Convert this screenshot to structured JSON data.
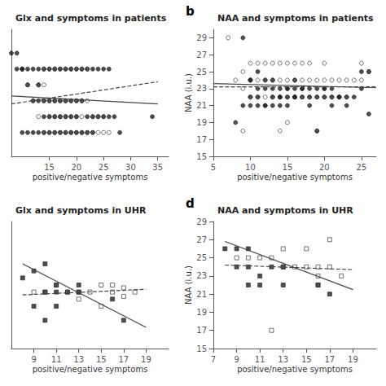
{
  "chart_data": [
    {
      "type": "scatter",
      "title": "Glx and symptoms in patients",
      "xlabel": "positive/negative symptoms",
      "xlim": [
        8,
        37
      ],
      "ylim": [
        6.5,
        14.5
      ],
      "xticks": [
        15,
        20,
        25,
        30,
        35
      ],
      "tick_labels": "x",
      "grid": false,
      "series": [
        {
          "type": "scatter",
          "marker": "open circle",
          "color": "#222222",
          "x": [
            10,
            11,
            12,
            13,
            13,
            14,
            14,
            15,
            15,
            16,
            16,
            17,
            17,
            18,
            18,
            19,
            19,
            20,
            20,
            21,
            21,
            22,
            23,
            24,
            25,
            14,
            15,
            16,
            17,
            18,
            19,
            20,
            21,
            22,
            14,
            15,
            16,
            17,
            18,
            19,
            20,
            21,
            22,
            23,
            24,
            25,
            26
          ],
          "values": [
            12,
            11,
            10,
            11,
            9,
            11,
            10,
            10,
            9,
            10,
            9,
            10,
            9,
            10,
            9,
            10,
            9,
            10,
            9,
            10,
            9,
            10,
            9,
            9,
            9,
            12,
            12,
            12,
            12,
            12,
            12,
            12,
            12,
            12,
            8,
            8,
            8,
            8,
            8,
            8,
            8,
            8,
            8,
            8,
            8,
            8,
            8
          ]
        },
        {
          "type": "scatter",
          "marker": "filled circle",
          "color": "#222222",
          "x": [
            8,
            9,
            10,
            11,
            12,
            13,
            13,
            14,
            14,
            15,
            15,
            16,
            16,
            17,
            17,
            18,
            18,
            19,
            19,
            20,
            20,
            21,
            22,
            23,
            24,
            25,
            26,
            27,
            28,
            34,
            9,
            10,
            11,
            12,
            13,
            14,
            15,
            16,
            17,
            18,
            19,
            20,
            21,
            22,
            23,
            24,
            25,
            26,
            10,
            11,
            12,
            13,
            14,
            15,
            16,
            17,
            18,
            19,
            20,
            21,
            22,
            23
          ],
          "values": [
            13,
            13,
            12,
            11,
            10,
            11,
            10,
            10,
            9,
            10,
            9,
            10,
            9,
            10,
            9,
            10,
            9,
            10,
            9,
            10,
            9,
            10,
            9,
            9,
            9,
            9,
            9,
            9,
            8,
            9,
            12,
            12,
            12,
            12,
            12,
            12,
            12,
            12,
            12,
            12,
            12,
            12,
            12,
            12,
            12,
            12,
            12,
            12,
            8,
            8,
            8,
            8,
            8,
            8,
            8,
            8,
            8,
            8,
            8,
            8,
            8,
            8
          ]
        },
        {
          "type": "line",
          "line_style": "solid",
          "color": "#444444",
          "x": [
            8,
            35
          ],
          "values": [
            10.3,
            9.8
          ]
        },
        {
          "type": "line",
          "line_style": "dashed",
          "color": "#444444",
          "x": [
            8,
            35
          ],
          "values": [
            9.8,
            11.2
          ]
        }
      ]
    },
    {
      "type": "scatter",
      "title": "NAA and symptoms in patients",
      "annotation": "b",
      "xlabel": "positive/negative symptoms",
      "ylabel": "NAA (i.u.)",
      "xlim": [
        5,
        27
      ],
      "ylim": [
        15,
        30
      ],
      "xticks": [
        5,
        10,
        15,
        20,
        25
      ],
      "yticks": [
        15,
        17,
        19,
        21,
        23,
        25,
        27,
        29
      ],
      "grid": false,
      "series": [
        {
          "type": "scatter",
          "marker": "open circle",
          "color": "#222222",
          "x": [
            7,
            8,
            9,
            9,
            10,
            10,
            10,
            11,
            11,
            11,
            12,
            12,
            12,
            13,
            13,
            13,
            14,
            14,
            14,
            15,
            15,
            15,
            16,
            16,
            16,
            17,
            17,
            17,
            18,
            18,
            18,
            19,
            19,
            20,
            20,
            20,
            21,
            21,
            22,
            22,
            23,
            23,
            24,
            25,
            25,
            26,
            9,
            14,
            15,
            19
          ],
          "values": [
            29,
            24,
            23,
            25,
            22,
            24,
            26,
            22,
            24,
            26,
            22,
            24,
            26,
            22,
            24,
            26,
            22,
            24,
            26,
            22,
            24,
            26,
            22,
            24,
            26,
            22,
            24,
            26,
            22,
            24,
            26,
            22,
            24,
            22,
            24,
            26,
            22,
            24,
            22,
            24,
            22,
            24,
            24,
            24,
            26,
            25,
            18,
            18,
            19,
            18
          ]
        },
        {
          "type": "scatter",
          "marker": "filled circle",
          "color": "#222222",
          "x": [
            9,
            10,
            10,
            11,
            11,
            12,
            12,
            13,
            13,
            14,
            14,
            15,
            15,
            16,
            16,
            17,
            17,
            18,
            18,
            19,
            19,
            20,
            20,
            21,
            21,
            22,
            23,
            25,
            26,
            8,
            9,
            10,
            10,
            11,
            11,
            12,
            12,
            13,
            13,
            14,
            14,
            15,
            15,
            16,
            16,
            17,
            18,
            19,
            20,
            21,
            22,
            23,
            24,
            25,
            26
          ],
          "values": [
            29,
            24,
            21,
            22,
            23,
            21,
            23,
            22,
            23,
            22,
            23,
            22,
            23,
            22,
            23,
            22,
            23,
            22,
            23,
            22,
            23,
            22,
            23,
            22,
            23,
            22,
            22,
            25,
            25,
            19,
            21,
            24,
            22,
            21,
            25,
            21,
            24,
            21,
            24,
            21,
            22,
            21,
            23,
            22,
            24,
            23,
            21,
            18,
            23,
            21,
            22,
            21,
            22,
            23,
            20
          ]
        },
        {
          "type": "line",
          "line_style": "solid",
          "color": "#444444",
          "x": [
            5,
            27
          ],
          "values": [
            23.6,
            23.1
          ]
        },
        {
          "type": "line",
          "line_style": "dashed",
          "color": "#444444",
          "x": [
            5,
            27
          ],
          "values": [
            23.2,
            23.2
          ]
        }
      ]
    },
    {
      "type": "scatter",
      "title": "Glx and symptoms in UHR",
      "xlabel": "positive/negative symptoms",
      "xlim": [
        7,
        21
      ],
      "ylim": [
        20,
        29
      ],
      "xticks": [
        9,
        11,
        13,
        15,
        17,
        19
      ],
      "tick_labels": "x",
      "grid": false,
      "series": [
        {
          "type": "scatter",
          "marker": "open square",
          "color": "#222222",
          "x": [
            9,
            10,
            11,
            12,
            13,
            13,
            14,
            15,
            15,
            16,
            16,
            17,
            17,
            18
          ],
          "values": [
            24,
            24,
            24.5,
            24,
            24,
            23.5,
            24,
            24.5,
            23,
            24.5,
            24,
            24.3,
            23.7,
            24
          ]
        },
        {
          "type": "scatter",
          "marker": "filled square",
          "color": "#222222",
          "x": [
            8,
            9,
            9,
            10,
            10,
            10,
            11,
            11,
            11,
            12,
            13,
            13,
            16,
            17
          ],
          "values": [
            25,
            25.5,
            23,
            26,
            24,
            22,
            24.5,
            24,
            23,
            24,
            24.5,
            24,
            23.5,
            22
          ]
        },
        {
          "type": "line",
          "line_style": "solid",
          "color": "#444444",
          "x": [
            8,
            19
          ],
          "values": [
            26.0,
            21.5
          ]
        },
        {
          "type": "line",
          "line_style": "dashed",
          "color": "#444444",
          "x": [
            8,
            19
          ],
          "values": [
            23.8,
            24.2
          ]
        }
      ]
    },
    {
      "type": "scatter",
      "title": "NAA and symptoms in UHR",
      "annotation": "d",
      "xlabel": "positive/negative symptoms",
      "ylabel": "NAA (i.u.)",
      "xlim": [
        7,
        21
      ],
      "ylim": [
        15,
        29
      ],
      "xticks": [
        7,
        9,
        11,
        13,
        15,
        17,
        19
      ],
      "yticks": [
        15,
        17,
        19,
        21,
        23,
        25,
        27,
        29
      ],
      "grid": false,
      "series": [
        {
          "type": "scatter",
          "marker": "open square",
          "color": "#222222",
          "x": [
            9,
            10,
            11,
            12,
            13,
            13,
            14,
            15,
            15,
            16,
            16,
            17,
            17,
            18,
            12,
            16
          ],
          "values": [
            25,
            25,
            25,
            25,
            24,
            26,
            24,
            24,
            26,
            24,
            23,
            27,
            24,
            23,
            17,
            22
          ]
        },
        {
          "type": "scatter",
          "marker": "filled square",
          "color": "#222222",
          "x": [
            8,
            9,
            9,
            10,
            10,
            10,
            11,
            11,
            12,
            13,
            13,
            16,
            17
          ],
          "values": [
            26,
            26,
            24,
            26,
            24,
            22,
            23,
            22,
            24,
            24,
            22,
            22,
            21
          ]
        },
        {
          "type": "line",
          "line_style": "solid",
          "color": "#444444",
          "x": [
            8,
            19
          ],
          "values": [
            26.8,
            21.5
          ]
        },
        {
          "type": "line",
          "line_style": "dashed",
          "color": "#444444",
          "x": [
            8,
            19
          ],
          "values": [
            24.2,
            23.7
          ]
        }
      ]
    }
  ]
}
